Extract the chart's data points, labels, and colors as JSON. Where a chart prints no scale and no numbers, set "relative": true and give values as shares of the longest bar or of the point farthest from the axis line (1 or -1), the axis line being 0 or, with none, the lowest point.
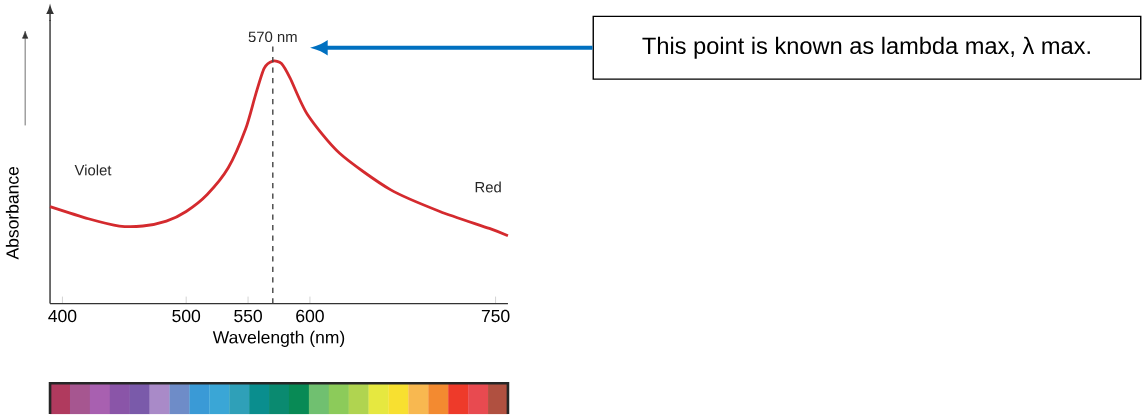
{
  "chart_data": {
    "type": "line",
    "relative": true,
    "xlabel": "Wavelength (nm)",
    "ylabel": "Absorbance",
    "xlim": [
      390,
      760
    ],
    "xticks": [
      400,
      500,
      550,
      600,
      750
    ],
    "series": [
      {
        "color": "#d42a2e",
        "x": [
          390,
          421,
          446,
          465,
          484,
          500,
          517,
          534,
          548,
          556,
          563,
          570,
          577,
          584,
          598,
          624,
          665,
          705,
          745,
          760
        ],
        "values": [
          0.4,
          0.35,
          0.32,
          0.32,
          0.34,
          0.38,
          0.45,
          0.56,
          0.72,
          0.86,
          0.97,
          1,
          0.99,
          0.93,
          0.78,
          0.62,
          0.47,
          0.38,
          0.31,
          0.28
        ]
      }
    ],
    "ref_lines": [
      {
        "axis": "x",
        "value": 570,
        "label": "570 nm",
        "color": "#444444",
        "line_style": "dashed"
      }
    ],
    "annotations": [
      "Violet",
      "Red",
      "This point is known as lambda max, λ max."
    ],
    "marker": "none",
    "line_style": "solid"
  }
}
